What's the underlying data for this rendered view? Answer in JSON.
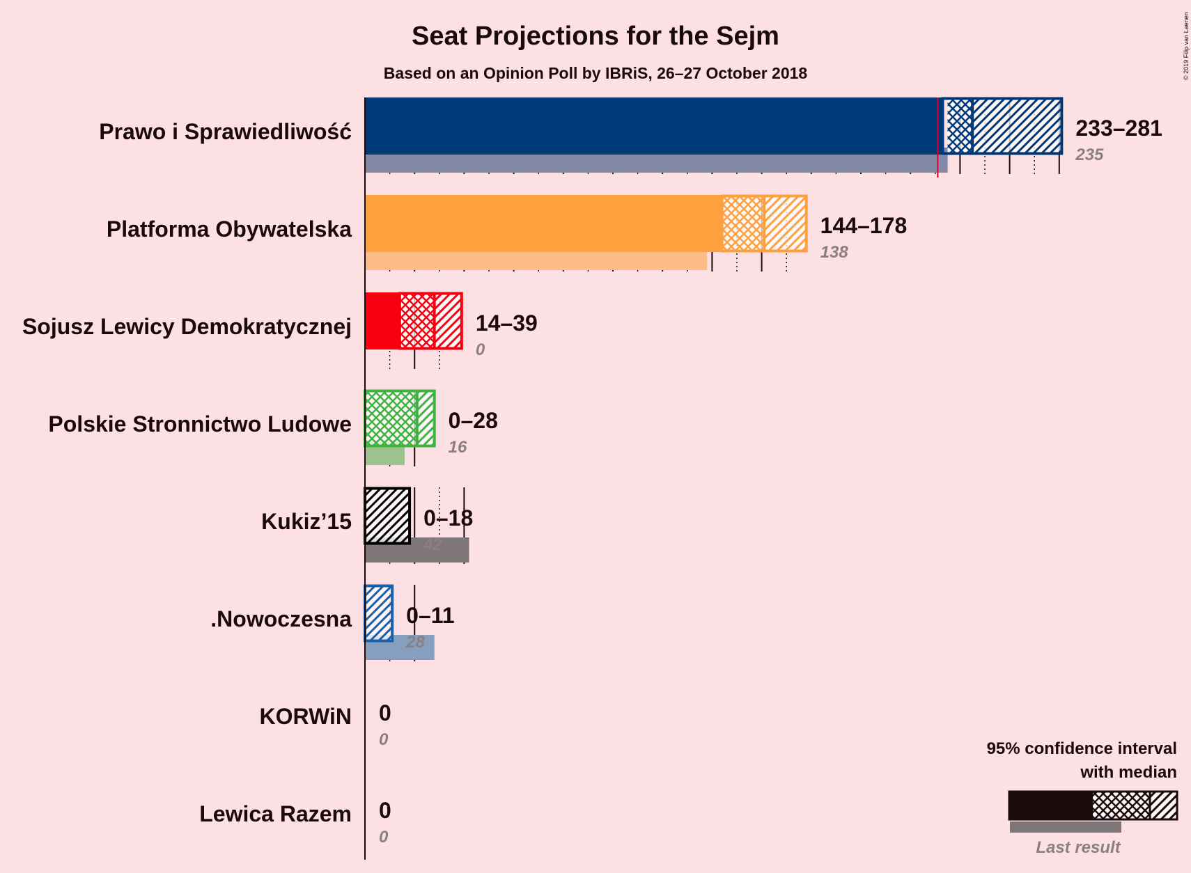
{
  "chart_data": {
    "type": "bar",
    "title": "Seat Projections for the Sejm",
    "subtitle": "Based on an Opinion Poll by IBRiS, 26–27 October 2018",
    "copyright": "© 2019 Filip van Laenen",
    "majority": 231,
    "xlim": [
      0,
      281
    ],
    "parties": [
      {
        "name": "Prawo i Sprawiedliwość",
        "low": 233,
        "q1": 235,
        "median": 245,
        "high": 281,
        "range_label": "233–281",
        "last": 235,
        "last_label": "235",
        "color": "#003a78",
        "last_color": "#838aa8"
      },
      {
        "name": "Platforma Obywatelska",
        "low": 144,
        "q1": 144,
        "median": 161,
        "high": 178,
        "range_label": "144–178",
        "last": 138,
        "last_label": "138",
        "color": "#ffa03f",
        "last_color": "#fdbc87"
      },
      {
        "name": "Sojusz Lewicy Demokratycznej",
        "low": 14,
        "q1": 14,
        "median": 28,
        "high": 39,
        "range_label": "14–39",
        "last": 0,
        "last_label": "0",
        "color": "#f80010",
        "last_color": "#f48a90"
      },
      {
        "name": "Polskie Stronnictwo Ludowe",
        "low": 0,
        "q1": 0,
        "median": 21,
        "high": 28,
        "range_label": "0–28",
        "last": 16,
        "last_label": "16",
        "color": "#3fb33f",
        "last_color": "#9bc28f"
      },
      {
        "name": "Kukiz’15",
        "low": 0,
        "q1": 0,
        "median": 0,
        "high": 18,
        "range_label": "0–18",
        "last": 42,
        "last_label": "42",
        "color": "#000000",
        "last_color": "#7f7679"
      },
      {
        "name": ".Nowoczesna",
        "low": 0,
        "q1": 0,
        "median": 0,
        "high": 11,
        "range_label": "0–11",
        "last": 28,
        "last_label": "28",
        "color": "#1960aa",
        "last_color": "#869fbf"
      },
      {
        "name": "KORWiN",
        "low": 0,
        "q1": 0,
        "median": 0,
        "high": 0,
        "range_label": "0",
        "last": 0,
        "last_label": "0",
        "color": "#333333",
        "last_color": "#8a7f82"
      },
      {
        "name": "Lewica Razem",
        "low": 0,
        "q1": 0,
        "median": 0,
        "high": 0,
        "range_label": "0",
        "last": 0,
        "last_label": "0",
        "color": "#333333",
        "last_color": "#8a7f82"
      }
    ],
    "legend": {
      "line1": "95% confidence interval",
      "line2": "with median",
      "last_result": "Last result",
      "placement": "bottom-right"
    },
    "grid": true
  }
}
